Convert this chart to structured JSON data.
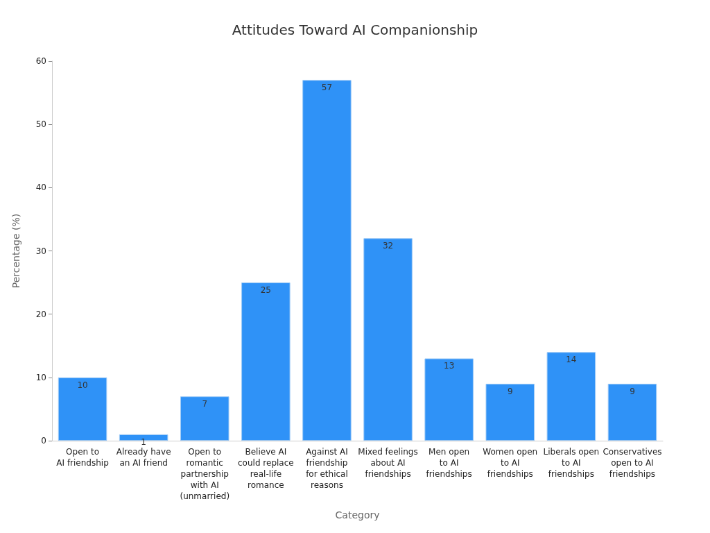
{
  "chart_data": {
    "type": "bar",
    "title": "Attitudes Toward AI Companionship",
    "xlabel": "Category",
    "ylabel": "Percentage (%)",
    "categories": [
      "Open to\nAI friendship",
      "Already have\nan AI friend",
      "Open to\nromantic\npartnership\nwith AI\n(unmarried)",
      "Believe AI\ncould replace\nreal-life\nromance",
      "Against AI\nfriendship\nfor ethical\nreasons",
      "Mixed feelings\nabout AI\nfriendships",
      "Men open\nto AI\nfriendships",
      "Women open\nto AI\nfriendships",
      "Liberals open\nto AI\nfriendships",
      "Conservatives\nopen to AI\nfriendships"
    ],
    "values": [
      10,
      1,
      7,
      25,
      57,
      32,
      13,
      9,
      14,
      9
    ],
    "color": "#2f92f7",
    "ylim": [
      0,
      60
    ],
    "yticks": [
      0,
      10,
      20,
      30,
      40,
      50,
      60
    ],
    "data_labels": true,
    "grid": false
  }
}
